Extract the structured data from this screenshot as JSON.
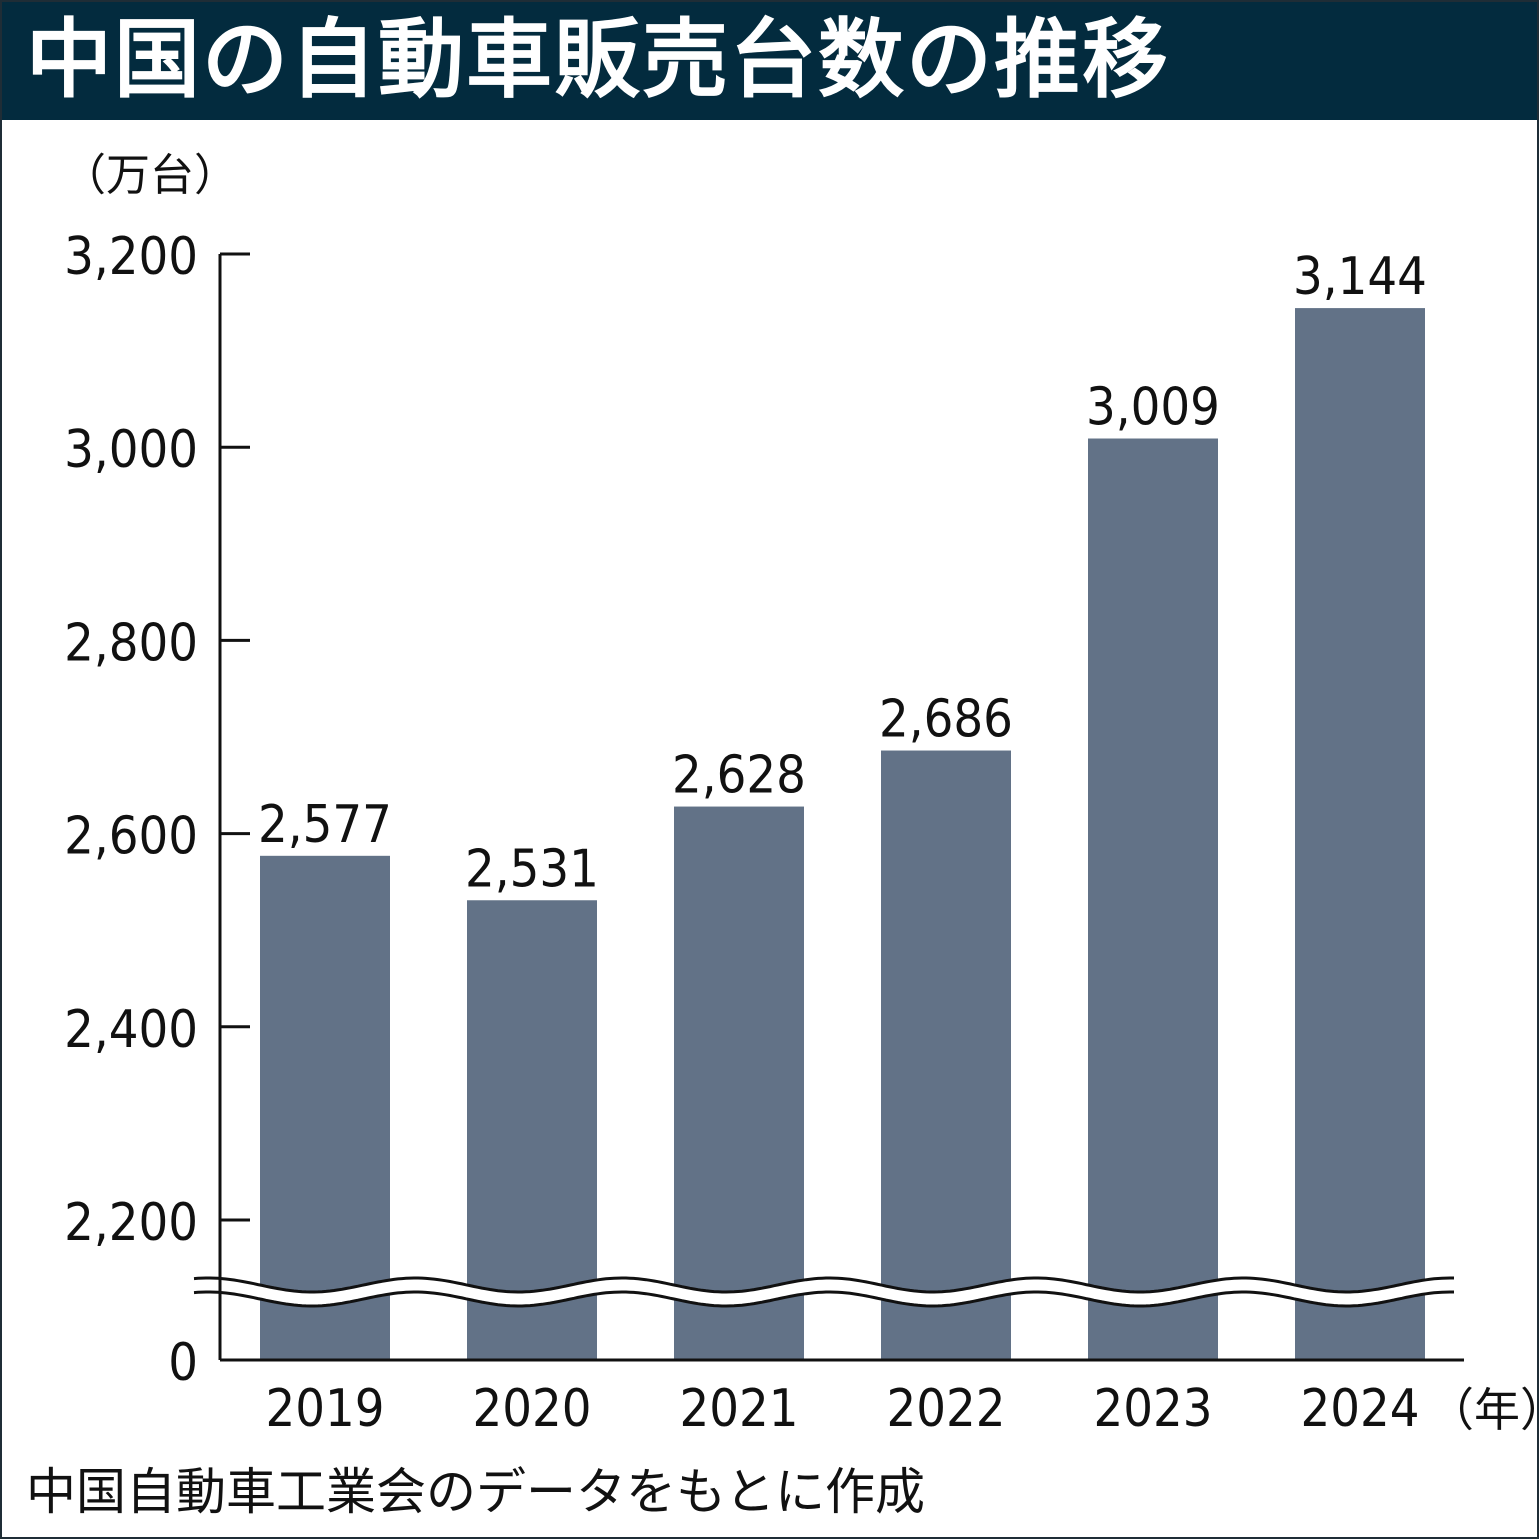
{
  "title": "中国の自動車販売台数の推移",
  "colors": {
    "title_bg": "#032b3e",
    "title_text": "#ffffff",
    "bar": "#627287",
    "axis": "#111111",
    "text": "#111111"
  },
  "source_note": "中国自動車工業会のデータをもとに作成",
  "chart_data": {
    "type": "bar",
    "title": "中国の自動車販売台数の推移",
    "ylabel": "（万台）",
    "xlabel": "（年）",
    "categories": [
      "2019",
      "2020",
      "2021",
      "2022",
      "2023",
      "2024"
    ],
    "values": [
      2577,
      2531,
      2628,
      2686,
      3009,
      3144
    ],
    "value_labels": [
      "2,577",
      "2,531",
      "2,628",
      "2,686",
      "3,009",
      "3,144"
    ],
    "yticks": [
      {
        "value": 0,
        "label": "0"
      },
      {
        "value": 2200,
        "label": "2,200"
      },
      {
        "value": 2400,
        "label": "2,400"
      },
      {
        "value": 2600,
        "label": "2,600"
      },
      {
        "value": 2800,
        "label": "2,800"
      },
      {
        "value": 3000,
        "label": "3,000"
      },
      {
        "value": 3200,
        "label": "3,200"
      }
    ],
    "ylim": [
      2200,
      3200
    ],
    "axis_break": true,
    "grid": false,
    "legend": "none"
  }
}
